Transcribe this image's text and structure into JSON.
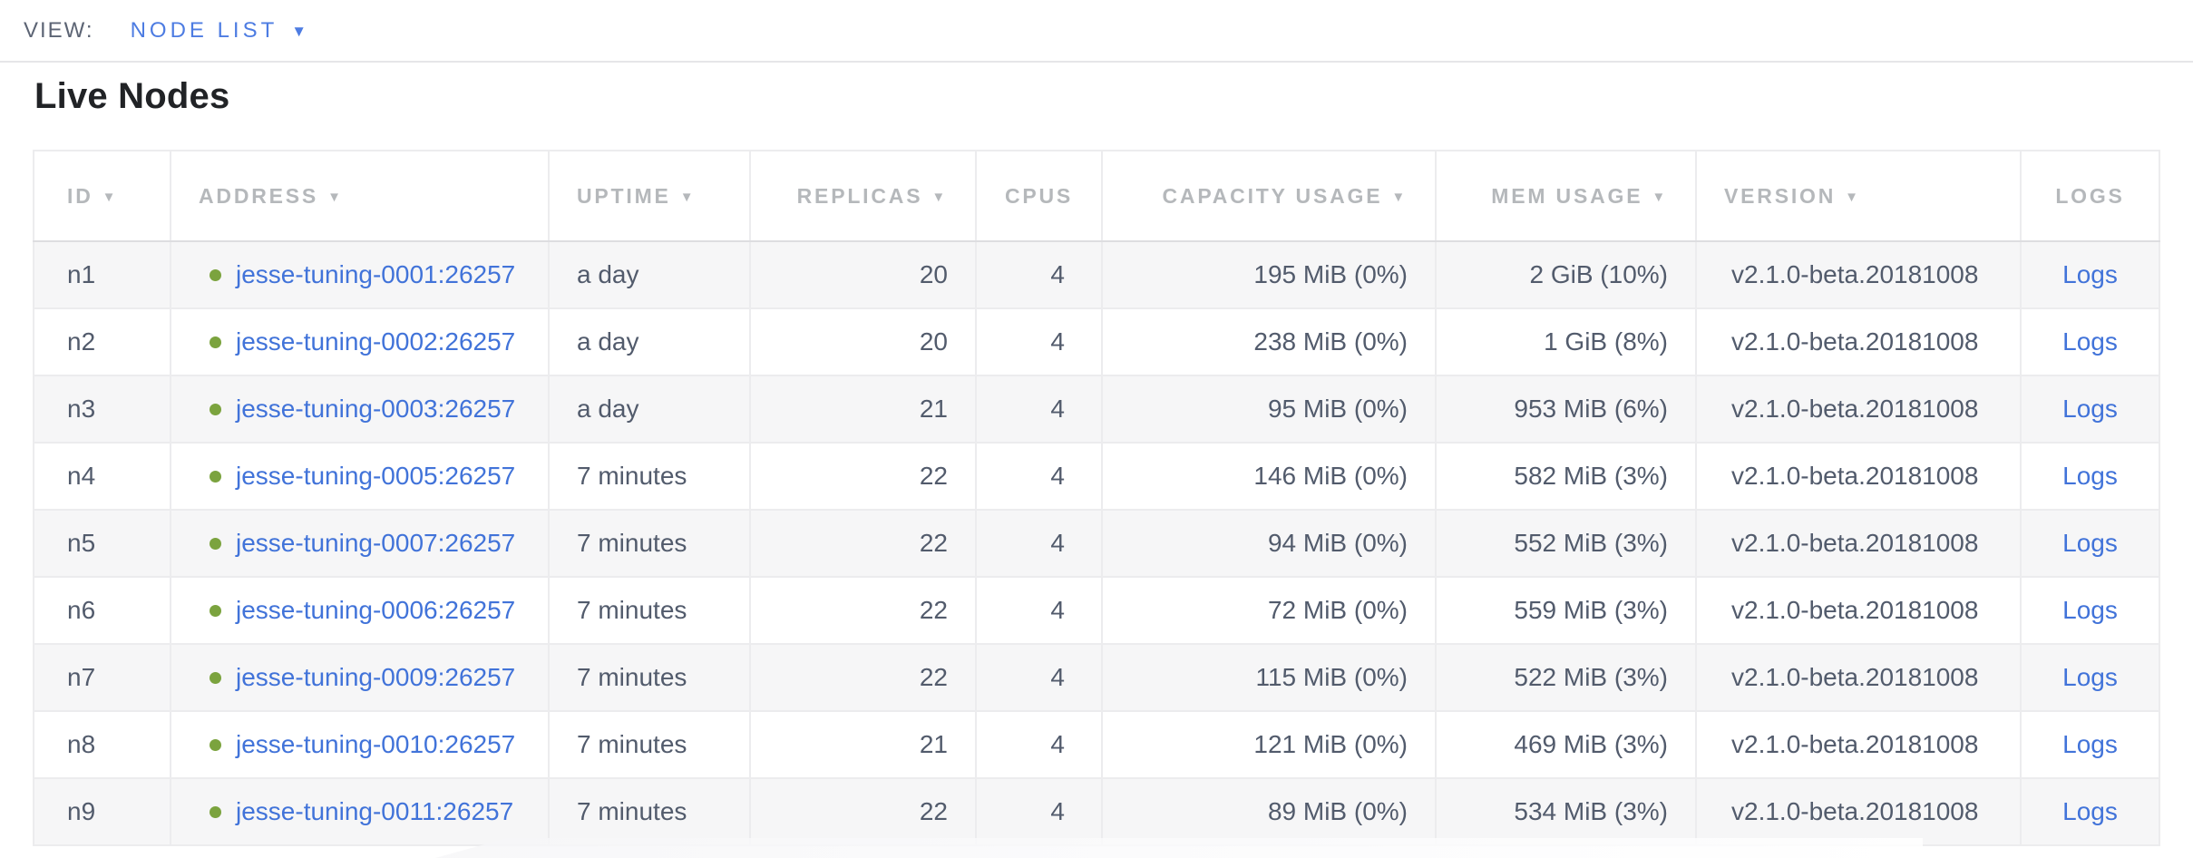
{
  "view_bar": {
    "label": "VIEW:",
    "selected_view": "NODE LIST"
  },
  "page": {
    "title": "Live Nodes"
  },
  "icons": {
    "sort_desc": "▼",
    "caret_down": "▼",
    "live_status_dot": "●"
  },
  "colors": {
    "link_blue": "#4173d9",
    "view_selector_blue": "#4d7ce2",
    "live_status_green": "#7ba33e",
    "header_gray": "#b5b8bb",
    "body_text": "#525b6c",
    "row_stripe": "#f6f6f7",
    "cell_border": "#ececee"
  },
  "table": {
    "columns": [
      {
        "key": "id",
        "label": "ID",
        "sortable": true
      },
      {
        "key": "address",
        "label": "ADDRESS",
        "sortable": true
      },
      {
        "key": "uptime",
        "label": "UPTIME",
        "sortable": true
      },
      {
        "key": "replicas",
        "label": "REPLICAS",
        "sortable": true
      },
      {
        "key": "cpus",
        "label": "CPUS",
        "sortable": false
      },
      {
        "key": "capacity",
        "label": "CAPACITY USAGE",
        "sortable": true
      },
      {
        "key": "mem",
        "label": "MEM USAGE",
        "sortable": true
      },
      {
        "key": "version",
        "label": "VERSION",
        "sortable": true
      },
      {
        "key": "logs",
        "label": "LOGS",
        "sortable": false
      }
    ],
    "rows": [
      {
        "id": "n1",
        "address": "jesse-tuning-0001:26257",
        "uptime": "a day",
        "replicas": "20",
        "cpus": "4",
        "capacity": "195 MiB (0%)",
        "mem": "2 GiB (10%)",
        "version": "v2.1.0-beta.20181008",
        "logs": "Logs"
      },
      {
        "id": "n2",
        "address": "jesse-tuning-0002:26257",
        "uptime": "a day",
        "replicas": "20",
        "cpus": "4",
        "capacity": "238 MiB (0%)",
        "mem": "1 GiB (8%)",
        "version": "v2.1.0-beta.20181008",
        "logs": "Logs"
      },
      {
        "id": "n3",
        "address": "jesse-tuning-0003:26257",
        "uptime": "a day",
        "replicas": "21",
        "cpus": "4",
        "capacity": "95 MiB (0%)",
        "mem": "953 MiB (6%)",
        "version": "v2.1.0-beta.20181008",
        "logs": "Logs"
      },
      {
        "id": "n4",
        "address": "jesse-tuning-0005:26257",
        "uptime": "7 minutes",
        "replicas": "22",
        "cpus": "4",
        "capacity": "146 MiB (0%)",
        "mem": "582 MiB (3%)",
        "version": "v2.1.0-beta.20181008",
        "logs": "Logs"
      },
      {
        "id": "n5",
        "address": "jesse-tuning-0007:26257",
        "uptime": "7 minutes",
        "replicas": "22",
        "cpus": "4",
        "capacity": "94 MiB (0%)",
        "mem": "552 MiB (3%)",
        "version": "v2.1.0-beta.20181008",
        "logs": "Logs"
      },
      {
        "id": "n6",
        "address": "jesse-tuning-0006:26257",
        "uptime": "7 minutes",
        "replicas": "22",
        "cpus": "4",
        "capacity": "72 MiB (0%)",
        "mem": "559 MiB (3%)",
        "version": "v2.1.0-beta.20181008",
        "logs": "Logs"
      },
      {
        "id": "n7",
        "address": "jesse-tuning-0009:26257",
        "uptime": "7 minutes",
        "replicas": "22",
        "cpus": "4",
        "capacity": "115 MiB (0%)",
        "mem": "522 MiB (3%)",
        "version": "v2.1.0-beta.20181008",
        "logs": "Logs"
      },
      {
        "id": "n8",
        "address": "jesse-tuning-0010:26257",
        "uptime": "7 minutes",
        "replicas": "21",
        "cpus": "4",
        "capacity": "121 MiB (0%)",
        "mem": "469 MiB (3%)",
        "version": "v2.1.0-beta.20181008",
        "logs": "Logs"
      },
      {
        "id": "n9",
        "address": "jesse-tuning-0011:26257",
        "uptime": "7 minutes",
        "replicas": "22",
        "cpus": "4",
        "capacity": "89 MiB (0%)",
        "mem": "534 MiB (3%)",
        "version": "v2.1.0-beta.20181008",
        "logs": "Logs"
      }
    ]
  }
}
